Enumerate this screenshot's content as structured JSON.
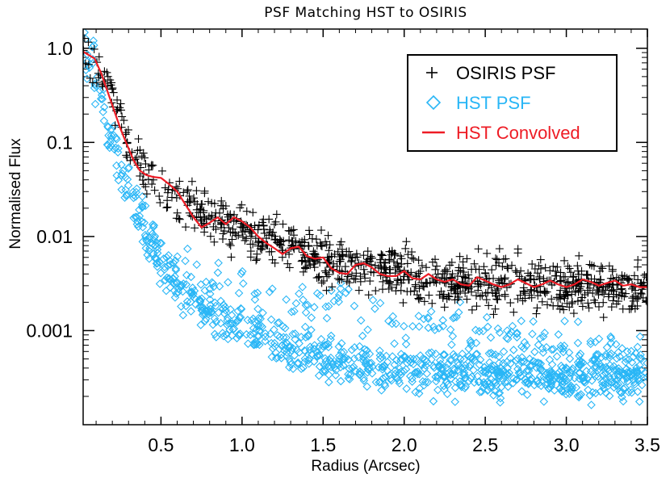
{
  "chart_data": {
    "type": "scatter",
    "title": "PSF Matching HST to OSIRIS",
    "xlabel": "Radius (Arcsec)",
    "ylabel": "Normalised Flux",
    "xlim": [
      0.02,
      3.5
    ],
    "ylim": [
      0.0001,
      1.6
    ],
    "yscale": "log",
    "x_ticks": [
      0.5,
      1.0,
      1.5,
      2.0,
      2.5,
      3.0,
      3.5
    ],
    "x_tick_labels": [
      "0.5",
      "1.0",
      "1.5",
      "2.0",
      "2.5",
      "3.0",
      "3.5"
    ],
    "y_ticks": [
      0.001,
      0.01,
      0.1,
      1.0
    ],
    "y_tick_labels": [
      "0.001",
      "0.01",
      "0.1",
      "1.0"
    ],
    "legend_position": "top-right",
    "series": [
      {
        "name": "OSIRIS PSF",
        "marker": "plus",
        "color": "#000000",
        "profile": {
          "x": [
            0.02,
            0.1,
            0.2,
            0.3,
            0.4,
            0.5,
            0.6,
            0.8,
            1.0,
            1.2,
            1.5,
            2.0,
            2.5,
            3.0,
            3.5
          ],
          "y": [
            1.0,
            0.7,
            0.3,
            0.1,
            0.045,
            0.032,
            0.024,
            0.016,
            0.012,
            0.009,
            0.006,
            0.0038,
            0.0032,
            0.003,
            0.0028
          ]
        },
        "scatter_dex": 0.13
      },
      {
        "name": "HST PSF",
        "marker": "diamond",
        "color": "#29B6F6",
        "profile": {
          "x": [
            0.02,
            0.07,
            0.15,
            0.2,
            0.25,
            0.3,
            0.35,
            0.4,
            0.5,
            0.6,
            0.7,
            0.8,
            1.0,
            1.2,
            1.5,
            2.0,
            2.5,
            3.0,
            3.5
          ],
          "y": [
            1.0,
            0.8,
            0.2,
            0.1,
            0.06,
            0.035,
            0.02,
            0.012,
            0.0055,
            0.0032,
            0.0022,
            0.0016,
            0.0011,
            0.00075,
            0.0005,
            0.00038,
            0.00035,
            0.00033,
            0.00032
          ]
        },
        "scatter_dex": 0.12,
        "outlier_bands": {
          "x": [
            0.5,
            1.0,
            1.5,
            2.0,
            2.5,
            3.0,
            3.5
          ],
          "y": [
            0.0055,
            0.0026,
            0.0019,
            0.0013,
            0.0009,
            0.0007,
            0.0006
          ]
        }
      },
      {
        "name": "HST Convolved",
        "marker": "line",
        "color": "#EE1C25",
        "x": [
          0.02,
          0.09,
          0.13,
          0.17,
          0.21,
          0.25,
          0.29,
          0.33,
          0.37,
          0.41,
          0.45,
          0.5,
          0.55,
          0.6,
          0.65,
          0.7,
          0.75,
          0.8,
          0.85,
          0.9,
          0.95,
          1.0,
          1.05,
          1.1,
          1.15,
          1.2,
          1.25,
          1.3,
          1.35,
          1.4,
          1.45,
          1.5,
          1.55,
          1.6,
          1.65,
          1.7,
          1.75,
          1.8,
          1.85,
          1.9,
          1.95,
          2.0,
          2.05,
          2.1,
          2.15,
          2.2,
          2.25,
          2.3,
          2.35,
          2.4,
          2.45,
          2.5,
          2.55,
          2.6,
          2.65,
          2.7,
          2.75,
          2.8,
          2.85,
          2.9,
          2.95,
          3.0,
          3.05,
          3.1,
          3.15,
          3.2,
          3.25,
          3.3,
          3.35,
          3.4,
          3.45,
          3.5
        ],
        "y": [
          0.92,
          0.78,
          0.55,
          0.35,
          0.22,
          0.14,
          0.095,
          0.065,
          0.05,
          0.045,
          0.043,
          0.042,
          0.036,
          0.03,
          0.022,
          0.016,
          0.0125,
          0.014,
          0.016,
          0.0135,
          0.016,
          0.0145,
          0.0125,
          0.01,
          0.0085,
          0.0075,
          0.0065,
          0.0075,
          0.0078,
          0.0062,
          0.0058,
          0.006,
          0.0046,
          0.0041,
          0.004,
          0.005,
          0.0052,
          0.0047,
          0.004,
          0.0038,
          0.0038,
          0.0043,
          0.0036,
          0.0035,
          0.004,
          0.0035,
          0.0033,
          0.0035,
          0.0031,
          0.003,
          0.0037,
          0.0034,
          0.0031,
          0.0029,
          0.0031,
          0.0035,
          0.0032,
          0.0029,
          0.0031,
          0.0034,
          0.0031,
          0.0029,
          0.0031,
          0.0035,
          0.0033,
          0.003,
          0.0032,
          0.0034,
          0.003,
          0.0031,
          0.0029,
          0.0029
        ]
      }
    ]
  }
}
